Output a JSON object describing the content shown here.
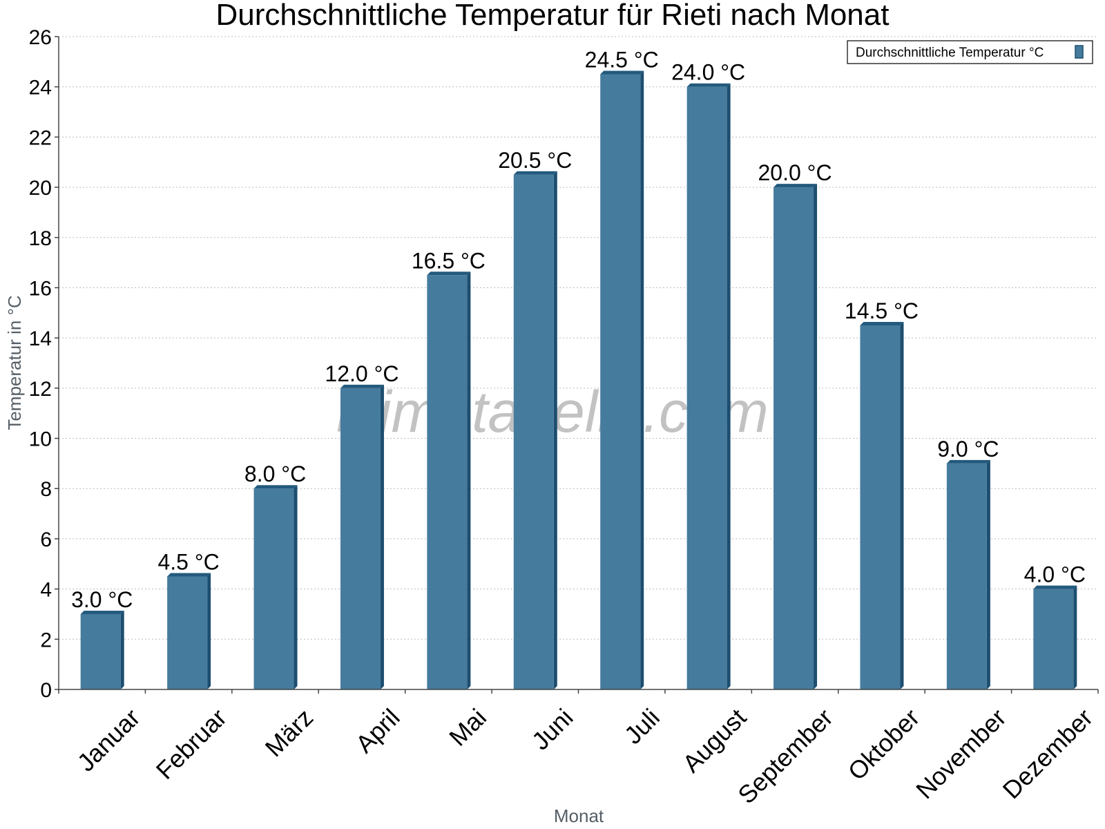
{
  "watermark": "klimatabelle.com",
  "colors": {
    "bar_face": "#457b9d",
    "bar_side": "#1d4e6f",
    "bar_top": "#235a7e",
    "grid": "#bbbbbb",
    "axis": "#444444"
  },
  "chart_data": {
    "type": "bar",
    "title": "Durchschnittliche Temperatur für Rieti nach Monat",
    "xlabel": "Monat",
    "ylabel": "Temperatur in °C",
    "categories": [
      "Januar",
      "Februar",
      "März",
      "April",
      "Mai",
      "Juni",
      "Juli",
      "August",
      "September",
      "Oktober",
      "November",
      "Dezember"
    ],
    "series": [
      {
        "name": "Durchschnittliche Temperatur °C",
        "values": [
          3.0,
          4.5,
          8.0,
          12.0,
          16.5,
          20.5,
          24.5,
          24.0,
          20.0,
          14.5,
          9.0,
          4.0
        ],
        "labels": [
          "3.0 °C",
          "4.5 °C",
          "8.0 °C",
          "12.0 °C",
          "16.5 °C",
          "20.5 °C",
          "24.5 °C",
          "24.0 °C",
          "20.0 °C",
          "14.5 °C",
          "9.0 °C",
          "4.0 °C"
        ]
      }
    ],
    "ylim": [
      0,
      26
    ],
    "yticks": [
      0,
      2,
      4,
      6,
      8,
      10,
      12,
      14,
      16,
      18,
      20,
      22,
      24,
      26
    ],
    "grid": true,
    "legend_position": "top-right"
  }
}
